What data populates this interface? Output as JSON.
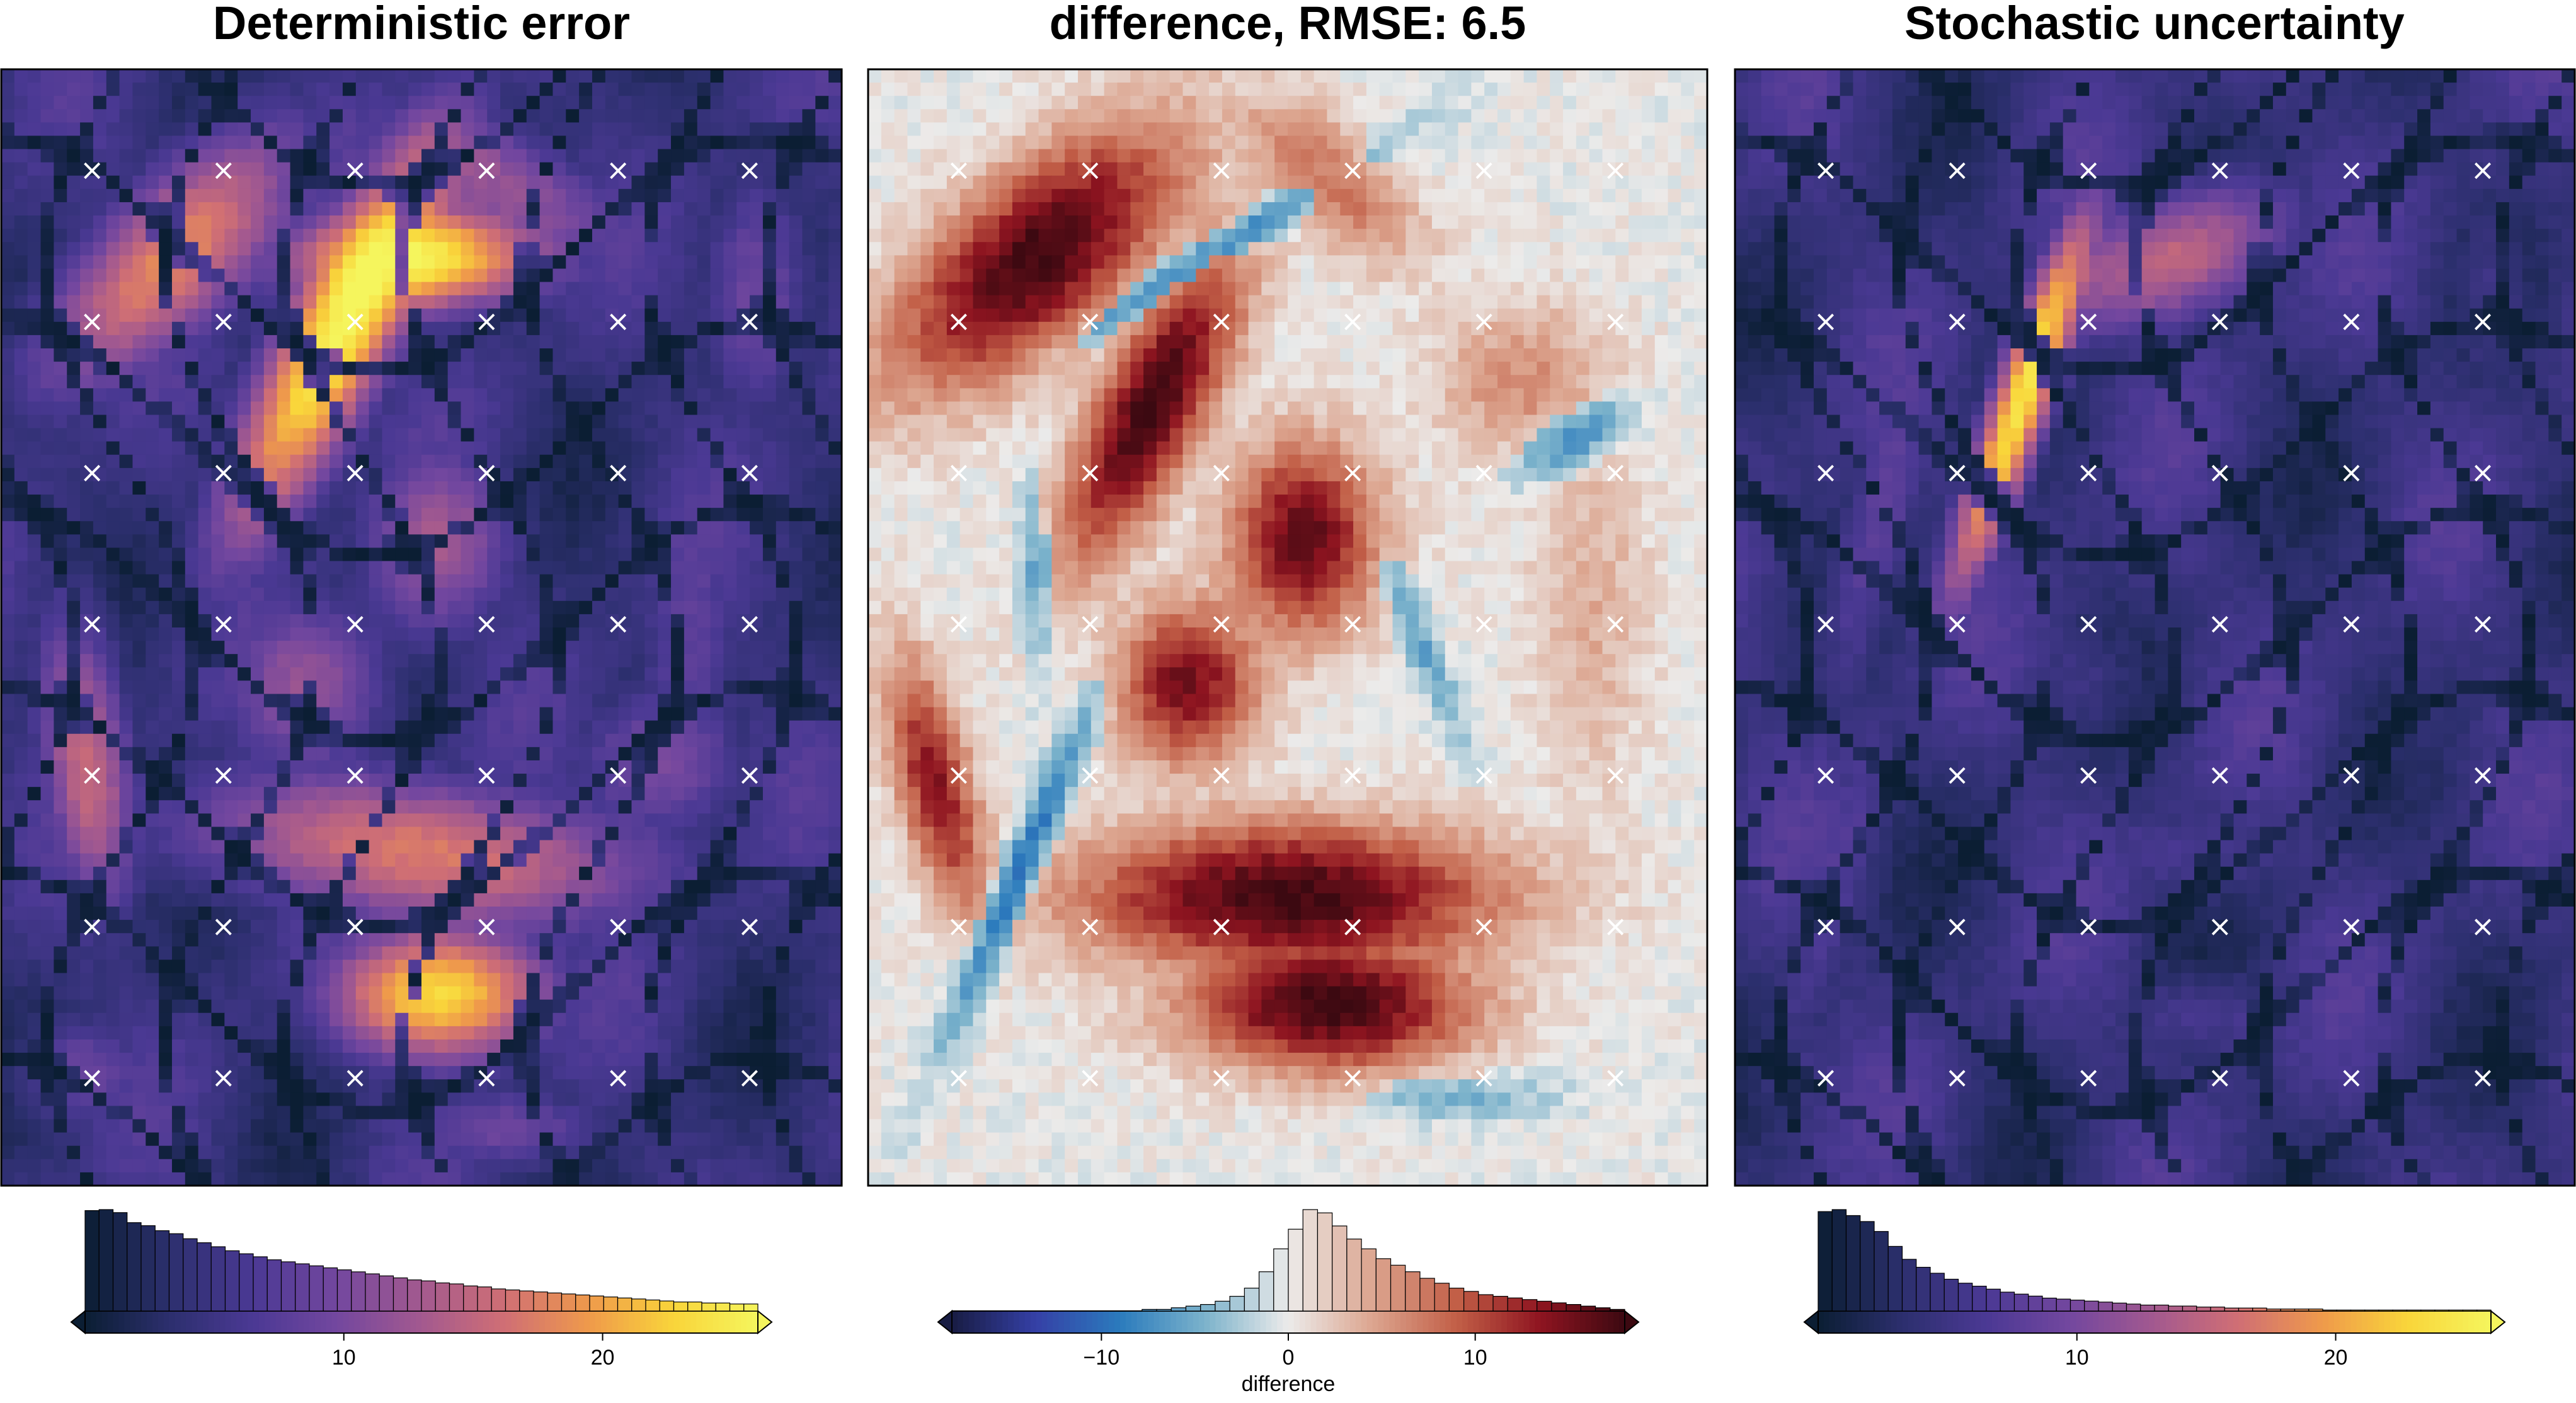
{
  "chart_data": [
    {
      "type": "heatmap",
      "title": "Deterministic error",
      "colormap": "thermal",
      "colormap_stops": [
        "#0b1e33",
        "#2c2f6e",
        "#4b3994",
        "#73479f",
        "#a3598f",
        "#d06f74",
        "#ef9a4b",
        "#f9d53a",
        "#f5f55d"
      ],
      "color_range": [
        0,
        26
      ],
      "extend": "max",
      "colorbar": {
        "ticks": [
          10,
          20
        ],
        "tick_labels": [
          "10",
          "20"
        ],
        "label": ""
      },
      "histogram": [
        100,
        101,
        98,
        88,
        85,
        80,
        77,
        72,
        68,
        64,
        60,
        57,
        54,
        51,
        49,
        47,
        45,
        43,
        41,
        39,
        37,
        35,
        33,
        31,
        30,
        28,
        27,
        25,
        24,
        22,
        21,
        20,
        19,
        18,
        17,
        16,
        15,
        14,
        13,
        12,
        11,
        10,
        9,
        9,
        8,
        8,
        7,
        7
      ],
      "markers": {
        "symbol": "×",
        "color": "#ffffff",
        "rows": 7,
        "cols": 6
      },
      "features": [
        {
          "x": 0.4,
          "y": 0.24,
          "angle": -55,
          "len": 0.4,
          "wid": 0.09,
          "value": 25
        },
        {
          "x": 0.2,
          "y": 0.17,
          "angle": -35,
          "len": 0.34,
          "wid": 0.11,
          "value": 18
        },
        {
          "x": 0.5,
          "y": 0.17,
          "angle": 0,
          "len": 0.28,
          "wid": 0.07,
          "value": 23
        },
        {
          "x": 0.5,
          "y": 0.7,
          "angle": 5,
          "len": 0.52,
          "wid": 0.1,
          "value": 17
        },
        {
          "x": 0.52,
          "y": 0.83,
          "angle": 0,
          "len": 0.24,
          "wid": 0.09,
          "value": 23
        },
        {
          "x": 0.1,
          "y": 0.62,
          "angle": 80,
          "len": 0.26,
          "wid": 0.08,
          "value": 15
        },
        {
          "x": 0.52,
          "y": 0.42,
          "angle": 0,
          "len": 0.17,
          "wid": 0.14,
          "value": 13
        },
        {
          "x": 0.36,
          "y": 0.55,
          "angle": 0,
          "len": 0.18,
          "wid": 0.12,
          "value": 12
        },
        {
          "x": 0.82,
          "y": 0.47,
          "angle": 90,
          "len": 0.34,
          "wid": 0.1,
          "value": 8
        },
        {
          "x": 0.6,
          "y": 0.1,
          "angle": 20,
          "len": 0.3,
          "wid": 0.08,
          "value": 11
        },
        {
          "x": 0.9,
          "y": 0.2,
          "angle": 90,
          "len": 0.22,
          "wid": 0.1,
          "value": 9
        },
        {
          "x": 0.78,
          "y": 0.62,
          "angle": 0,
          "len": 0.2,
          "wid": 0.1,
          "value": 9
        },
        {
          "x": 0.6,
          "y": 0.95,
          "angle": 0,
          "len": 0.24,
          "wid": 0.06,
          "value": 9
        },
        {
          "x": 0.1,
          "y": 0.9,
          "angle": 0,
          "len": 0.16,
          "wid": 0.08,
          "value": 9
        }
      ]
    },
    {
      "type": "heatmap",
      "title": "difference, RMSE: 6.5",
      "colormap": "balance",
      "colormap_stops": [
        "#181c43",
        "#3540a6",
        "#2b7bbd",
        "#7bb2cb",
        "#ecebea",
        "#dca58f",
        "#c25f47",
        "#8e1420",
        "#3c0911"
      ],
      "color_range": [
        -18,
        18
      ],
      "extend": "both",
      "colorbar": {
        "ticks": [
          -10,
          0,
          10
        ],
        "tick_labels": [
          "−10",
          "0",
          "10"
        ],
        "label": "difference"
      },
      "histogram": [
        0,
        0,
        0,
        0,
        0,
        0,
        0,
        0,
        0,
        0,
        0,
        0,
        0,
        1,
        1,
        2,
        3,
        4,
        6,
        9,
        14,
        24,
        38,
        50,
        62,
        60,
        52,
        44,
        38,
        32,
        28,
        24,
        20,
        17,
        14,
        12,
        10,
        9,
        8,
        7,
        6,
        5,
        4,
        3,
        2,
        1
      ],
      "markers": {
        "symbol": "×",
        "color": "#ffffff",
        "rows": 7,
        "cols": 6
      },
      "features": [
        {
          "x": 0.2,
          "y": 0.17,
          "angle": -30,
          "len": 0.32,
          "wid": 0.11,
          "value": 18
        },
        {
          "x": 0.34,
          "y": 0.3,
          "angle": -55,
          "len": 0.28,
          "wid": 0.08,
          "value": 18
        },
        {
          "x": 0.5,
          "y": 0.74,
          "angle": 0,
          "len": 0.42,
          "wid": 0.09,
          "value": 18
        },
        {
          "x": 0.55,
          "y": 0.84,
          "angle": 0,
          "len": 0.28,
          "wid": 0.08,
          "value": 18
        },
        {
          "x": 0.52,
          "y": 0.42,
          "angle": 0,
          "len": 0.15,
          "wid": 0.12,
          "value": 16
        },
        {
          "x": 0.38,
          "y": 0.55,
          "angle": 0,
          "len": 0.14,
          "wid": 0.1,
          "value": 15
        },
        {
          "x": 0.08,
          "y": 0.64,
          "angle": 70,
          "len": 0.2,
          "wid": 0.06,
          "value": 14
        },
        {
          "x": 0.55,
          "y": 0.1,
          "angle": 30,
          "len": 0.2,
          "wid": 0.07,
          "value": 8
        },
        {
          "x": 0.78,
          "y": 0.28,
          "angle": 0,
          "len": 0.18,
          "wid": 0.1,
          "value": 6
        },
        {
          "x": 0.86,
          "y": 0.48,
          "angle": 90,
          "len": 0.28,
          "wid": 0.1,
          "value": 4
        },
        {
          "x": 0.4,
          "y": 0.17,
          "angle": -25,
          "len": 0.4,
          "wid": 0.03,
          "value": -9
        },
        {
          "x": 0.18,
          "y": 0.72,
          "angle": -60,
          "len": 0.3,
          "wid": 0.03,
          "value": -10
        },
        {
          "x": 0.84,
          "y": 0.33,
          "angle": -20,
          "len": 0.12,
          "wid": 0.04,
          "value": -8
        },
        {
          "x": 0.65,
          "y": 0.5,
          "angle": 60,
          "len": 0.2,
          "wid": 0.03,
          "value": -6
        },
        {
          "x": 0.2,
          "y": 0.45,
          "angle": 90,
          "len": 0.14,
          "wid": 0.03,
          "value": -6
        },
        {
          "x": 0.7,
          "y": 0.92,
          "angle": 0,
          "len": 0.2,
          "wid": 0.03,
          "value": -5
        }
      ]
    },
    {
      "type": "heatmap",
      "title": "Stochastic uncertainty",
      "colormap": "thermal",
      "colormap_stops": [
        "#0b1e33",
        "#2c2f6e",
        "#4b3994",
        "#73479f",
        "#a3598f",
        "#d06f74",
        "#ef9a4b",
        "#f9d53a",
        "#f5f55d"
      ],
      "color_range": [
        0,
        26
      ],
      "extend": "both",
      "colorbar": {
        "ticks": [
          10,
          20
        ],
        "tick_labels": [
          "10",
          "20"
        ],
        "label": ""
      },
      "histogram": [
        100,
        102,
        96,
        90,
        80,
        65,
        52,
        44,
        38,
        32,
        28,
        25,
        22,
        19,
        17,
        15,
        13,
        12,
        11,
        10,
        9,
        8,
        7,
        6,
        6,
        5,
        5,
        4,
        4,
        3,
        3,
        3,
        2,
        2,
        2,
        2,
        1,
        1,
        1,
        1,
        1,
        1,
        1,
        1,
        1,
        1,
        1,
        1
      ],
      "markers": {
        "symbol": "×",
        "color": "#ffffff",
        "rows": 7,
        "cols": 6
      },
      "features": [
        {
          "x": 0.34,
          "y": 0.3,
          "angle": -65,
          "len": 0.36,
          "wid": 0.05,
          "value": 24
        },
        {
          "x": 0.52,
          "y": 0.17,
          "angle": -15,
          "len": 0.28,
          "wid": 0.09,
          "value": 15
        },
        {
          "x": 0.18,
          "y": 0.38,
          "angle": -70,
          "len": 0.4,
          "wid": 0.07,
          "value": 8
        },
        {
          "x": 0.12,
          "y": 0.72,
          "angle": -70,
          "len": 0.36,
          "wid": 0.07,
          "value": 7
        },
        {
          "x": 0.52,
          "y": 0.7,
          "angle": 0,
          "len": 0.4,
          "wid": 0.08,
          "value": 6
        },
        {
          "x": 0.52,
          "y": 0.42,
          "angle": 0,
          "len": 0.18,
          "wid": 0.12,
          "value": 6
        },
        {
          "x": 0.56,
          "y": 0.85,
          "angle": 0,
          "len": 0.26,
          "wid": 0.07,
          "value": 6
        },
        {
          "x": 0.82,
          "y": 0.48,
          "angle": 90,
          "len": 0.34,
          "wid": 0.1,
          "value": 5
        },
        {
          "x": 0.9,
          "y": 0.2,
          "angle": 90,
          "len": 0.2,
          "wid": 0.08,
          "value": 5
        },
        {
          "x": 0.4,
          "y": 0.55,
          "angle": 0,
          "len": 0.16,
          "wid": 0.1,
          "value": 5
        },
        {
          "x": 0.1,
          "y": 0.9,
          "angle": 0,
          "len": 0.16,
          "wid": 0.08,
          "value": 5
        }
      ]
    }
  ]
}
